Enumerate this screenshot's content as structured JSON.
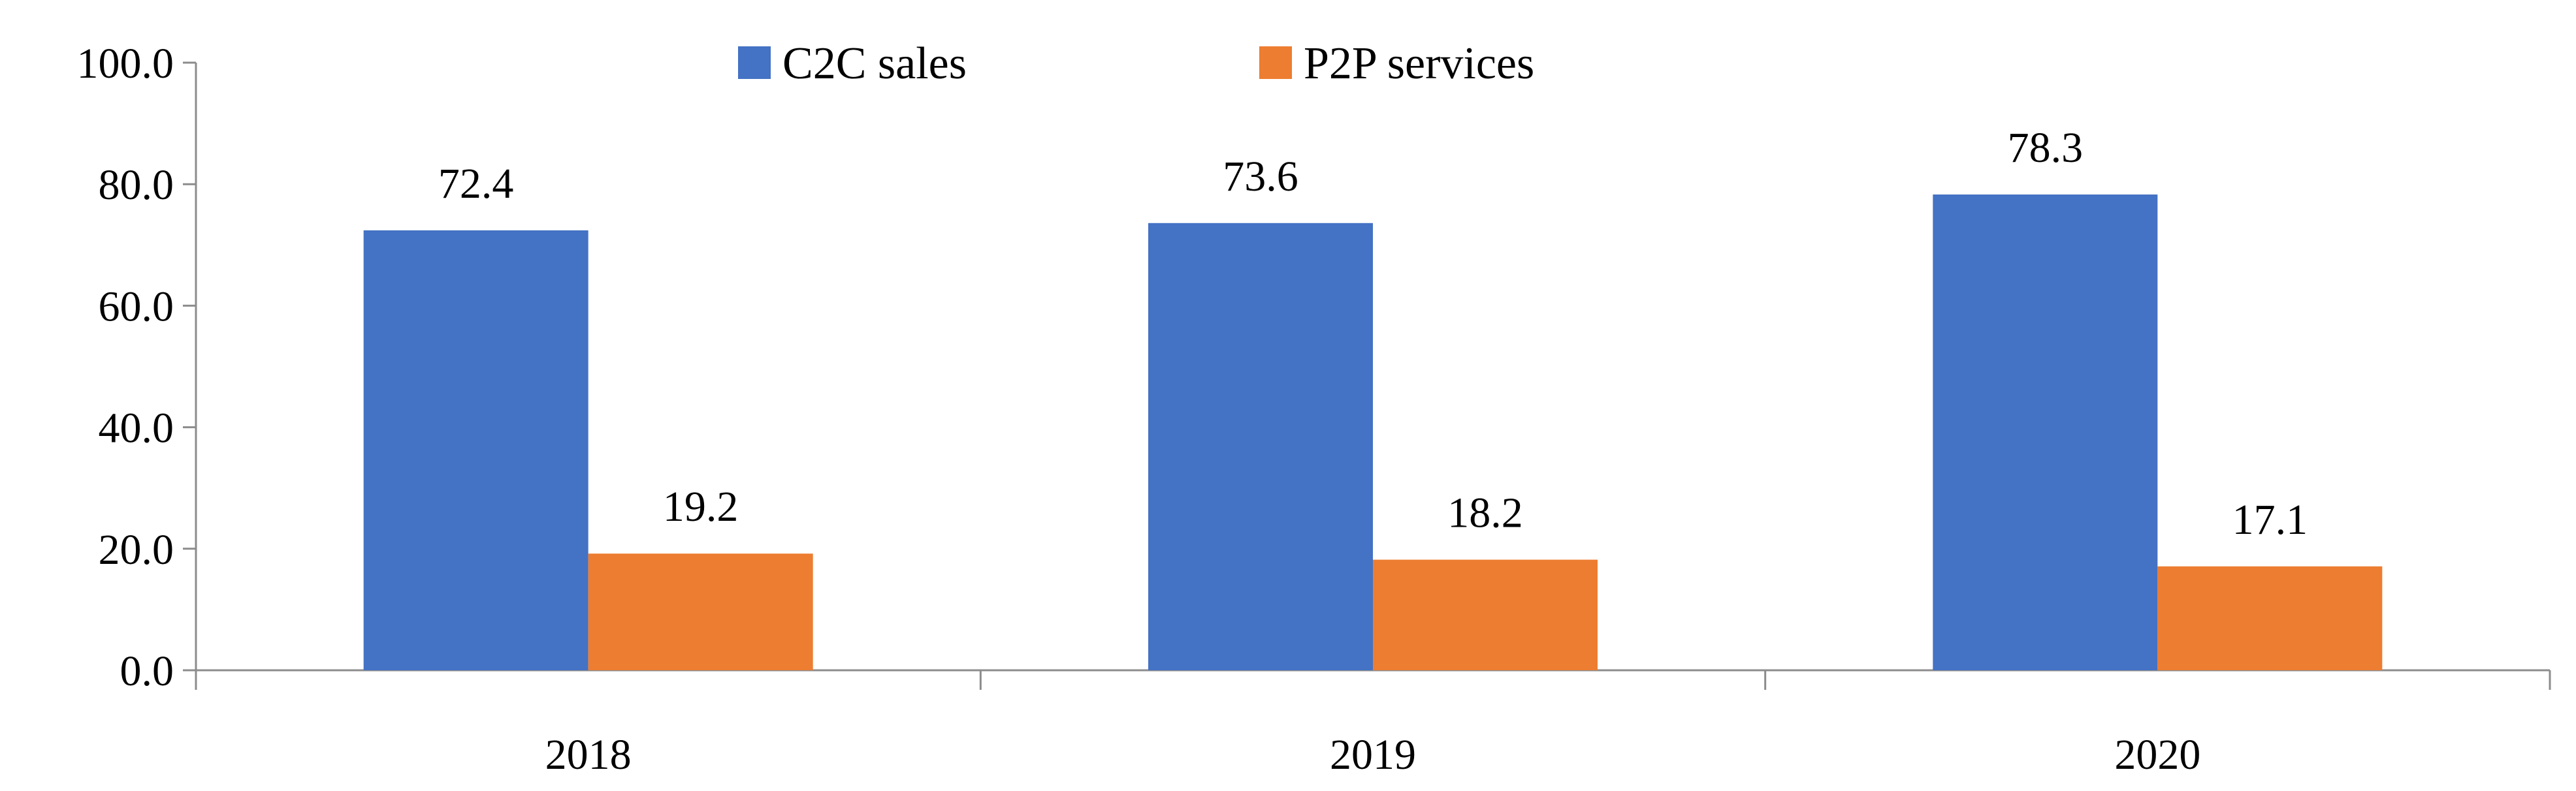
{
  "chart_data": {
    "type": "bar",
    "title": "",
    "xlabel": "",
    "ylabel": "",
    "categories": [
      "2018",
      "2019",
      "2020"
    ],
    "series": [
      {
        "name": "C2C sales",
        "color": "#4472C4",
        "values": [
          72.4,
          73.6,
          78.3
        ],
        "labels": [
          "72.4",
          "73.6",
          "78.3"
        ]
      },
      {
        "name": "P2P services",
        "color": "#ED7D31",
        "values": [
          19.2,
          18.2,
          17.1
        ],
        "labels": [
          "19.2",
          "18.2",
          "17.1"
        ]
      }
    ],
    "ylim": [
      0,
      100
    ],
    "yticks": [
      0,
      20,
      40,
      60,
      80,
      100
    ],
    "ytick_labels": [
      "0.0",
      "20.0",
      "40.0",
      "60.0",
      "80.0",
      "100.0"
    ],
    "grid": false,
    "legend_position": "top-center"
  }
}
